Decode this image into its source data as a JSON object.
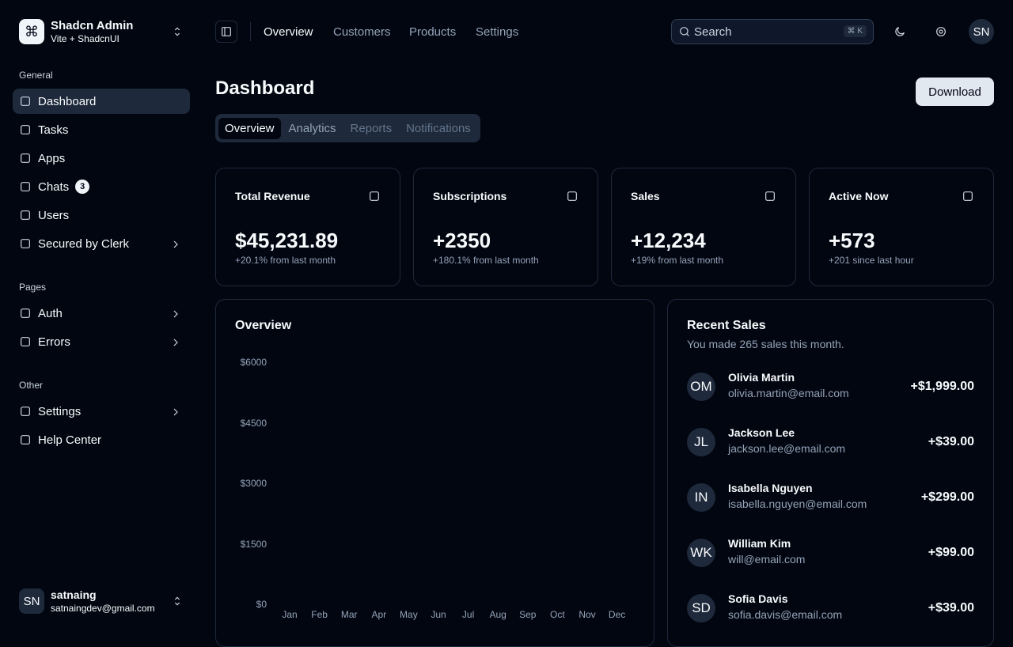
{
  "sidebar": {
    "team": {
      "name": "Shadcn Admin",
      "plan": "Vite + ShadcnUI"
    },
    "groups": [
      {
        "title": "General",
        "items": [
          {
            "label": "Dashboard"
          },
          {
            "label": "Tasks"
          },
          {
            "label": "Apps"
          },
          {
            "label": "Chats",
            "badge": "3"
          },
          {
            "label": "Users"
          },
          {
            "label": "Secured by Clerk"
          }
        ]
      },
      {
        "title": "Pages",
        "items": [
          {
            "label": "Auth"
          },
          {
            "label": "Errors"
          }
        ]
      },
      {
        "title": "Other",
        "items": [
          {
            "label": "Settings"
          },
          {
            "label": "Help Center"
          }
        ]
      }
    ],
    "user": {
      "initials": "SN",
      "name": "satnaing",
      "email": "satnaingdev@gmail.com"
    }
  },
  "header": {
    "nav": [
      "Overview",
      "Customers",
      "Products",
      "Settings"
    ],
    "search": "Search",
    "shortcut": "⌘ K",
    "avatar": "SN"
  },
  "main": {
    "title": "Dashboard",
    "download": "Download",
    "tabs": [
      "Overview",
      "Analytics",
      "Reports",
      "Notifications"
    ],
    "cards": [
      {
        "title": "Total Revenue",
        "value": "$45,231.89",
        "note": "+20.1% from last month"
      },
      {
        "title": "Subscriptions",
        "value": "+2350",
        "note": "+180.1% from last month"
      },
      {
        "title": "Sales",
        "value": "+12,234",
        "note": "+19% from last month"
      },
      {
        "title": "Active Now",
        "value": "+573",
        "note": "+201 since last hour"
      }
    ],
    "overview": {
      "title": "Overview",
      "ylim": [
        0,
        6000
      ],
      "yticks": [
        {
          "value": 6000,
          "label": "$6000"
        },
        {
          "value": 4500,
          "label": "$4500"
        },
        {
          "value": 3000,
          "label": "$3000"
        },
        {
          "value": 1500,
          "label": "$1500"
        },
        {
          "value": 0,
          "label": "$0"
        }
      ],
      "categories": [
        "Jan",
        "Feb",
        "Mar",
        "Apr",
        "May",
        "Jun",
        "Jul",
        "Aug",
        "Sep",
        "Oct",
        "Nov",
        "Dec"
      ]
    },
    "recent_sales": {
      "title": "Recent Sales",
      "subtitle": "You made 265 sales this month.",
      "sales": [
        {
          "initials": "OM",
          "name": "Olivia Martin",
          "email": "olivia.martin@email.com",
          "amount": "+$1,999.00"
        },
        {
          "initials": "JL",
          "name": "Jackson Lee",
          "email": "jackson.lee@email.com",
          "amount": "+$39.00"
        },
        {
          "initials": "IN",
          "name": "Isabella Nguyen",
          "email": "isabella.nguyen@email.com",
          "amount": "+$299.00"
        },
        {
          "initials": "WK",
          "name": "William Kim",
          "email": "will@email.com",
          "amount": "+$99.00"
        },
        {
          "initials": "SD",
          "name": "Sofia Davis",
          "email": "sofia.davis@email.com",
          "amount": "+$39.00"
        }
      ]
    }
  }
}
